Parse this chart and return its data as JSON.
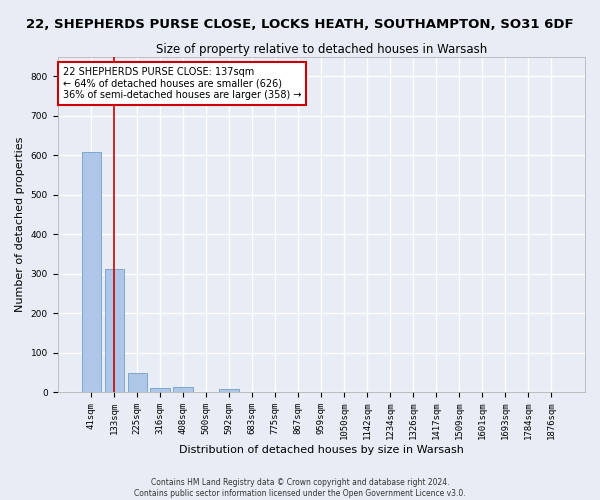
{
  "title_line1": "22, SHEPHERDS PURSE CLOSE, LOCKS HEATH, SOUTHAMPTON, SO31 6DF",
  "title_line2": "Size of property relative to detached houses in Warsash",
  "xlabel": "Distribution of detached houses by size in Warsash",
  "ylabel": "Number of detached properties",
  "footnote1": "Contains HM Land Registry data © Crown copyright and database right 2024.",
  "footnote2": "Contains public sector information licensed under the Open Government Licence v3.0.",
  "bar_labels": [
    "41sqm",
    "133sqm",
    "225sqm",
    "316sqm",
    "408sqm",
    "500sqm",
    "592sqm",
    "683sqm",
    "775sqm",
    "867sqm",
    "959sqm",
    "1050sqm",
    "1142sqm",
    "1234sqm",
    "1326sqm",
    "1417sqm",
    "1509sqm",
    "1601sqm",
    "1693sqm",
    "1784sqm",
    "1876sqm"
  ],
  "bar_values": [
    609,
    311,
    48,
    10,
    12,
    0,
    8,
    0,
    0,
    0,
    0,
    0,
    0,
    0,
    0,
    0,
    0,
    0,
    0,
    0,
    0
  ],
  "bar_color": "#aec6e8",
  "bar_edge_color": "#7fa8cc",
  "background_color": "#e8edf5",
  "grid_color": "#ffffff",
  "annotation_text": "22 SHEPHERDS PURSE CLOSE: 137sqm\n← 64% of detached houses are smaller (626)\n36% of semi-detached houses are larger (358) →",
  "annotation_box_color": "#ffffff",
  "annotation_box_edge_color": "#cc0000",
  "annotation_text_color": "#000000",
  "vline_color": "#cc0000",
  "ylim": [
    0,
    850
  ],
  "yticks": [
    0,
    100,
    200,
    300,
    400,
    500,
    600,
    700,
    800
  ],
  "title_fontsize": 9.5,
  "subtitle_fontsize": 8.5,
  "axis_label_fontsize": 8,
  "tick_fontsize": 6.5,
  "annotation_fontsize": 7,
  "footnote_fontsize": 5.5
}
